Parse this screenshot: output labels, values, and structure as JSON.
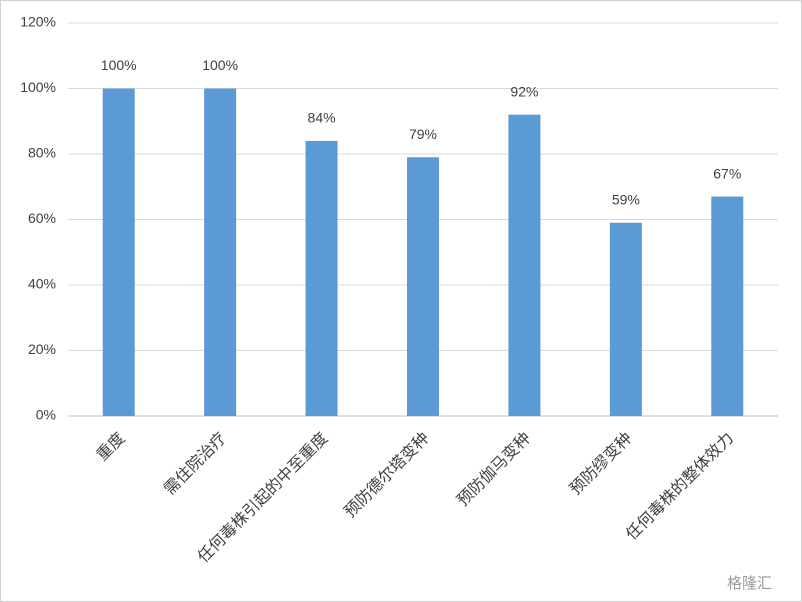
{
  "chart_data": {
    "type": "bar",
    "categories": [
      "重度",
      "需住院治疗",
      "任何毒株引起的中至重度",
      "预防德尔塔变种",
      "预防伽马变种",
      "预防缪变种",
      "任何毒株的整体效力"
    ],
    "values": [
      100,
      100,
      84,
      79,
      92,
      59,
      67
    ],
    "value_labels": [
      "100%",
      "100%",
      "84%",
      "79%",
      "92%",
      "59%",
      "67%"
    ],
    "color": "#5b9bd5",
    "ylim": [
      0,
      120
    ],
    "yticks": [
      {
        "value": 0,
        "label": "0%"
      },
      {
        "value": 20,
        "label": "20%"
      },
      {
        "value": 40,
        "label": "40%"
      },
      {
        "value": 60,
        "label": "60%"
      },
      {
        "value": 80,
        "label": "80%"
      },
      {
        "value": 100,
        "label": "100%"
      },
      {
        "value": 120,
        "label": "120%"
      }
    ],
    "grid": true,
    "watermark": "格隆汇"
  }
}
